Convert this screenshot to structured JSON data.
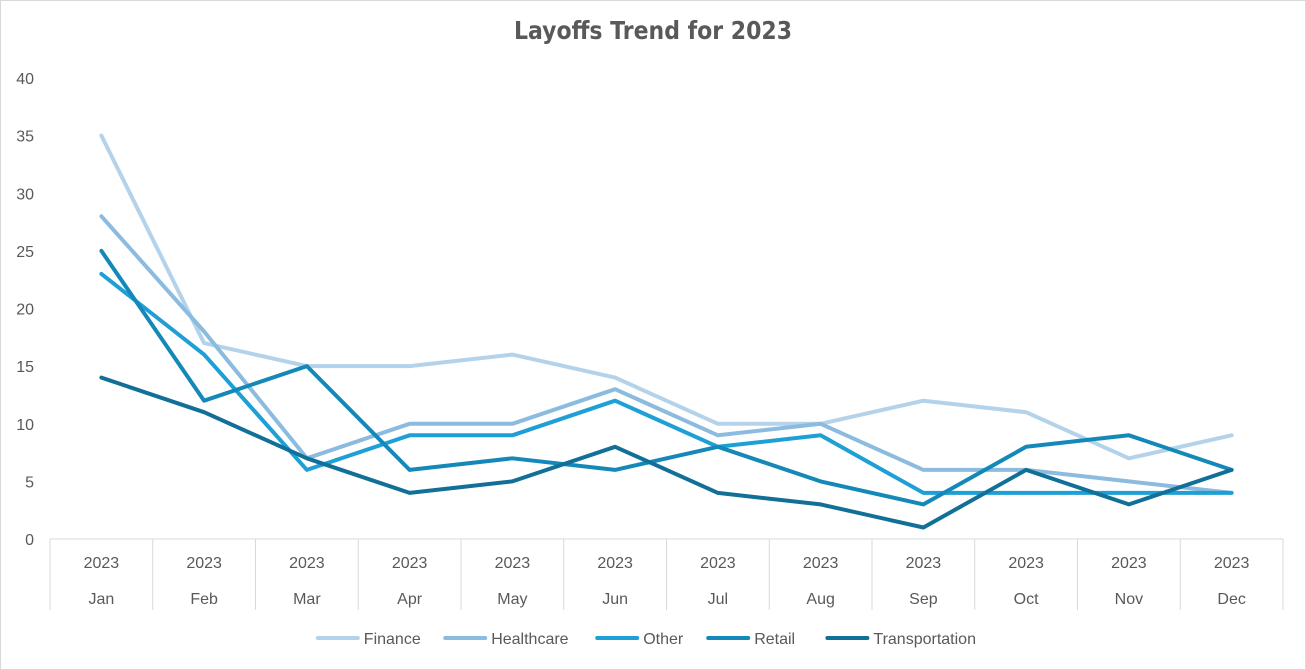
{
  "chart_data": {
    "type": "line",
    "title": "Layoffs Trend for 2023",
    "xlabel": "",
    "ylabel": "",
    "ylim": [
      0,
      40
    ],
    "yticks": [
      0,
      5,
      10,
      15,
      20,
      25,
      30,
      35,
      40
    ],
    "grid": false,
    "legend_position": "bottom",
    "categories": [
      {
        "year": "2023",
        "month": "Jan"
      },
      {
        "year": "2023",
        "month": "Feb"
      },
      {
        "year": "2023",
        "month": "Mar"
      },
      {
        "year": "2023",
        "month": "Apr"
      },
      {
        "year": "2023",
        "month": "May"
      },
      {
        "year": "2023",
        "month": "Jun"
      },
      {
        "year": "2023",
        "month": "Jul"
      },
      {
        "year": "2023",
        "month": "Aug"
      },
      {
        "year": "2023",
        "month": "Sep"
      },
      {
        "year": "2023",
        "month": "Oct"
      },
      {
        "year": "2023",
        "month": "Nov"
      },
      {
        "year": "2023",
        "month": "Dec"
      }
    ],
    "series": [
      {
        "name": "Finance",
        "color": "#b4d3ea",
        "values": [
          35,
          17,
          15,
          15,
          16,
          14,
          10,
          10,
          12,
          11,
          7,
          9
        ]
      },
      {
        "name": "Healthcare",
        "color": "#8cbbe0",
        "values": [
          28,
          18,
          7,
          10,
          10,
          13,
          9,
          10,
          6,
          6,
          5,
          4
        ]
      },
      {
        "name": "Other",
        "color": "#1ea0d6",
        "values": [
          23,
          16,
          6,
          9,
          9,
          12,
          8,
          9,
          4,
          4,
          4,
          4
        ]
      },
      {
        "name": "Retail",
        "color": "#1488b8",
        "values": [
          25,
          12,
          15,
          6,
          7,
          6,
          8,
          5,
          3,
          8,
          9,
          6
        ]
      },
      {
        "name": "Transportation",
        "color": "#116f98",
        "values": [
          14,
          11,
          7,
          4,
          5,
          8,
          4,
          3,
          1,
          6,
          3,
          6
        ]
      }
    ]
  }
}
